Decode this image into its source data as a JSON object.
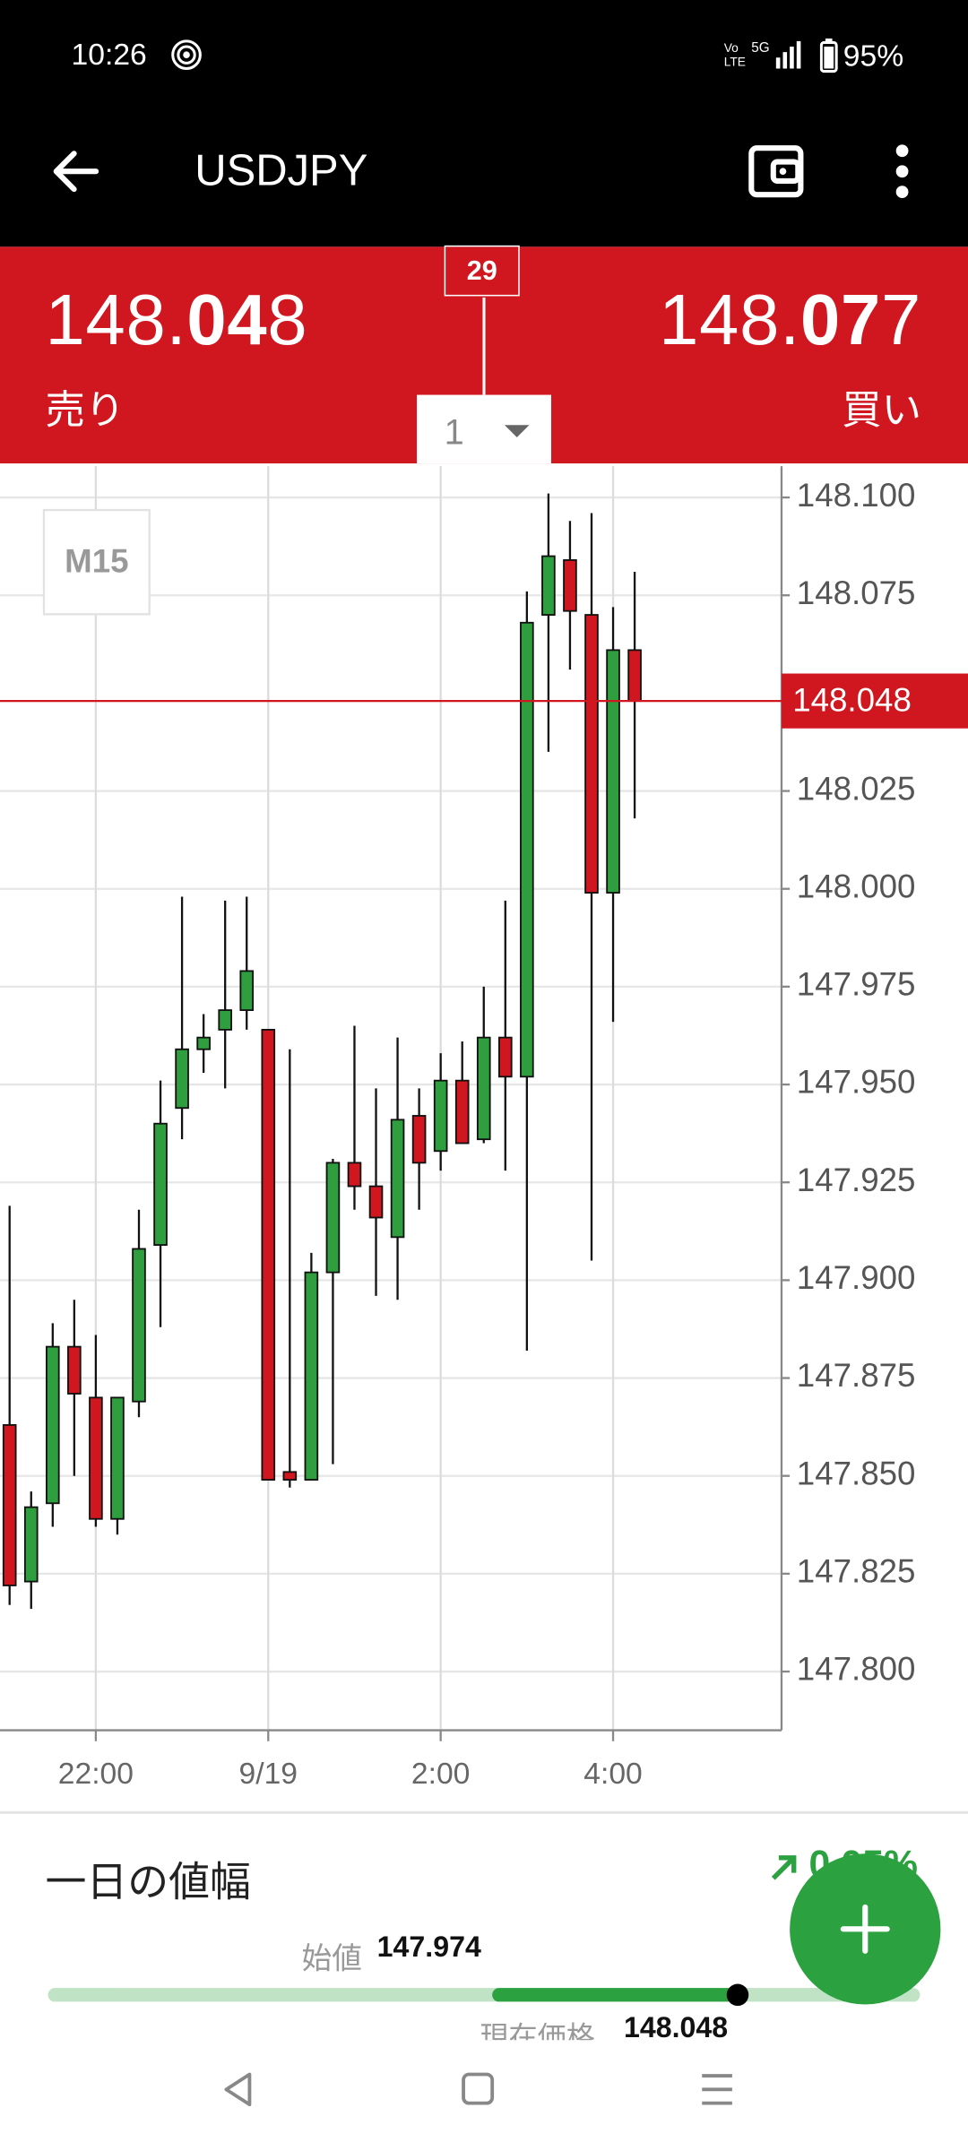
{
  "status_bar": {
    "time": "10:26",
    "battery": "95%"
  },
  "header": {
    "title": "USDJPY"
  },
  "quote": {
    "bid": {
      "lead": "148.",
      "big": "04",
      "tail": "8"
    },
    "bid_label": "売り",
    "ask": {
      "lead": "148.",
      "big": "07",
      "tail": "7"
    },
    "ask_label": "買い",
    "spread": "29",
    "lot": "1"
  },
  "chart_data": {
    "type": "candlestick",
    "timeframe": "M15",
    "categories": [
      null,
      null,
      null,
      null,
      "22:00",
      null,
      null,
      null,
      null,
      null,
      null,
      null,
      "9/19",
      null,
      null,
      null,
      null,
      null,
      null,
      null,
      "2:00",
      null,
      null,
      null,
      null,
      null,
      null,
      null,
      "4:00",
      null
    ],
    "open": [
      147.863,
      147.823,
      147.843,
      147.883,
      147.87,
      147.839,
      147.869,
      147.909,
      147.944,
      147.959,
      147.964,
      147.969,
      147.964,
      147.851,
      147.849,
      147.902,
      147.93,
      147.924,
      147.911,
      147.942,
      147.933,
      147.951,
      147.936,
      147.962,
      147.952,
      148.07,
      148.084,
      148.07,
      147.999,
      148.061
    ],
    "high": [
      147.919,
      147.846,
      147.889,
      147.895,
      147.886,
      147.87,
      147.918,
      147.951,
      147.998,
      147.968,
      147.997,
      147.998,
      147.964,
      147.959,
      147.907,
      147.931,
      147.965,
      147.949,
      147.962,
      147.949,
      147.958,
      147.961,
      147.975,
      147.997,
      148.076,
      148.101,
      148.094,
      148.096,
      148.072,
      148.081
    ],
    "low": [
      147.817,
      147.816,
      147.837,
      147.85,
      147.837,
      147.835,
      147.865,
      147.888,
      147.936,
      147.953,
      147.949,
      147.964,
      147.849,
      147.847,
      147.849,
      147.853,
      147.918,
      147.896,
      147.895,
      147.918,
      147.928,
      147.935,
      147.935,
      147.928,
      147.882,
      148.035,
      148.056,
      147.905,
      147.966,
      148.018
    ],
    "close": [
      147.822,
      147.842,
      147.883,
      147.871,
      147.839,
      147.87,
      147.908,
      147.94,
      147.959,
      147.962,
      147.969,
      147.979,
      147.849,
      147.849,
      147.902,
      147.93,
      147.924,
      147.916,
      147.941,
      147.93,
      147.951,
      147.935,
      147.962,
      147.952,
      148.068,
      148.085,
      148.071,
      147.999,
      148.061,
      148.048
    ],
    "up_color": "#2e9e3e",
    "down_color": "#d0171f",
    "current_price": 148.048,
    "ylim": [
      147.785,
      148.108
    ],
    "yticks": [
      {
        "value": 147.8,
        "label": "147.800"
      },
      147.825,
      {
        "value": 147.85,
        "label": "147.850"
      },
      147.875,
      {
        "value": 147.9,
        "label": "147.900"
      },
      147.925,
      {
        "value": 147.95,
        "label": "147.950"
      },
      147.975,
      {
        "value": 148.0,
        "label": "148.000"
      },
      148.025,
      148.075,
      {
        "value": 148.1,
        "label": "148.100"
      }
    ],
    "grid": true
  },
  "day_range": {
    "title": "一日の値幅",
    "change": "0.05%",
    "open_label": "始値",
    "open_value": "147.974",
    "current_label": "現在価格",
    "current_value": "148.048"
  }
}
